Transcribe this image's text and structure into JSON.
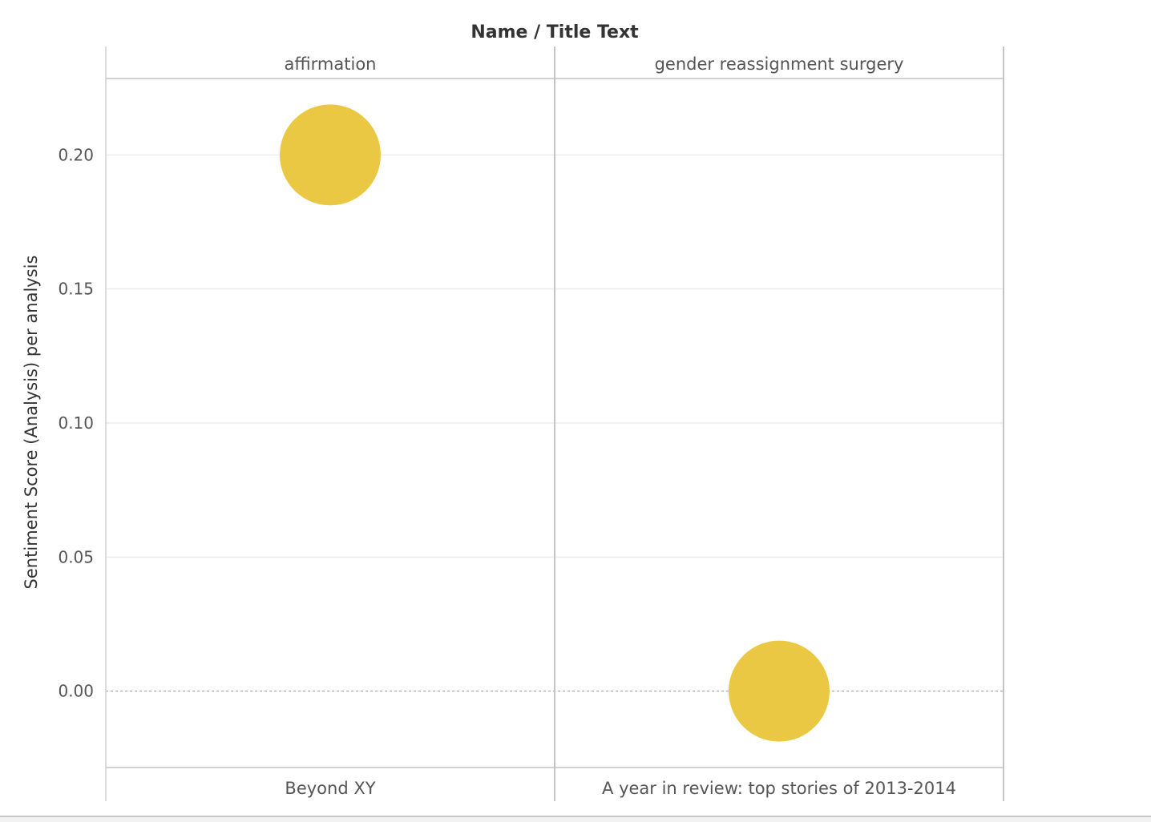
{
  "chart_data": {
    "type": "scatter",
    "title": "Name / Title Text",
    "ylabel": "Sentiment Score (Analysis) per analysis",
    "ylim": [
      -0.0285,
      0.2285
    ],
    "yticks": [
      0.2,
      0.15,
      0.1,
      0.05,
      0.0
    ],
    "ytick_labels": [
      "0.20",
      "0.15",
      "0.10",
      "0.05",
      "0.00"
    ],
    "grid": true,
    "panels": [
      {
        "name": "affirmation",
        "title": "Beyond XY",
        "y": 0.2
      },
      {
        "name": "gender reassignment surgery",
        "title": "A year in review: top stories of 2013-2014",
        "y": 0.0
      }
    ],
    "mark_color": "#EBC844"
  }
}
